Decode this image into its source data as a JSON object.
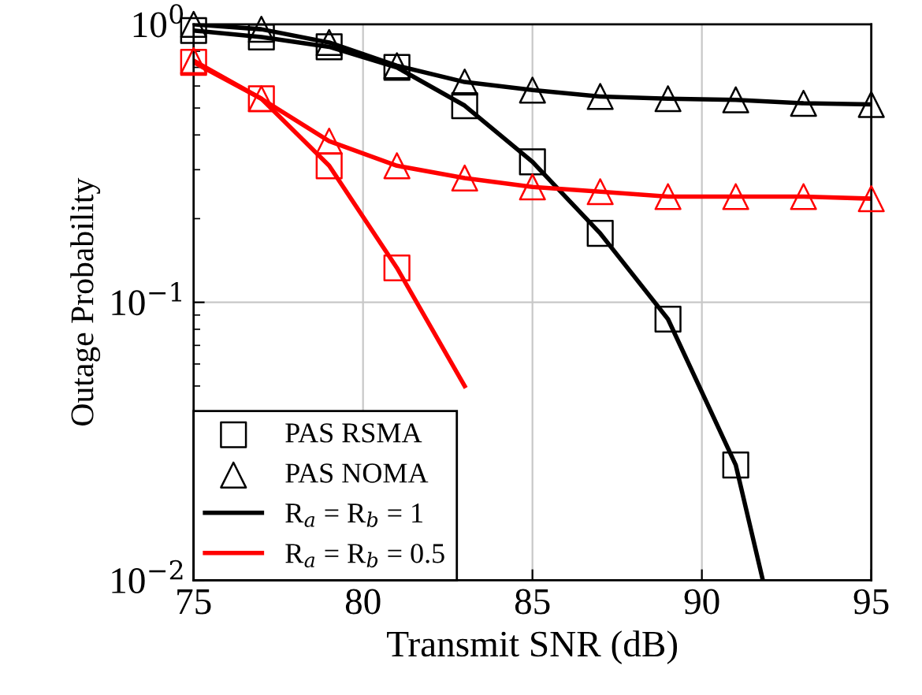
{
  "chart_data": {
    "type": "line",
    "xlabel": "Transmit SNR (dB)",
    "ylabel": "Outage Probability",
    "xlim": [
      75,
      95
    ],
    "xticks": [
      75,
      80,
      85,
      90,
      95
    ],
    "ylim": [
      0.01,
      1
    ],
    "yticks": [
      {
        "value": 0.01,
        "label": "10$^{−2}$"
      },
      {
        "value": 0.1,
        "label": "10$^{−1}$"
      },
      {
        "value": 1,
        "label": "10$^{0}$"
      }
    ],
    "log": "y",
    "grid": true,
    "legend": "bottom left",
    "series": [
      {
        "name": "PAS RSMA",
        "type": "scatter",
        "marker": "square",
        "color": "#000000",
        "x": [
          75,
          77,
          79,
          81,
          83,
          85,
          87,
          89,
          91
        ],
        "values": [
          0.95,
          0.9,
          0.83,
          0.7,
          0.51,
          0.32,
          0.177,
          0.087,
          0.026
        ]
      },
      {
        "type": "scatter",
        "marker": "square",
        "color": "#ff0000",
        "x": [
          75,
          77,
          79,
          81
        ],
        "values": [
          0.73,
          0.54,
          0.31,
          0.133
        ]
      },
      {
        "name": "PAS NOMA",
        "type": "scatter",
        "marker": "triangle",
        "color": "#000000",
        "x": [
          75,
          77,
          79,
          81,
          83,
          85,
          87,
          89,
          91,
          93,
          95
        ],
        "values": [
          1.0,
          0.96,
          0.86,
          0.71,
          0.62,
          0.58,
          0.55,
          0.54,
          0.535,
          0.52,
          0.515
        ]
      },
      {
        "type": "scatter",
        "marker": "triangle",
        "color": "#ff0000",
        "x": [
          75,
          77,
          79,
          81,
          83,
          85,
          87,
          89,
          91,
          93,
          95
        ],
        "values": [
          0.74,
          0.54,
          0.38,
          0.31,
          0.28,
          0.26,
          0.25,
          0.24,
          0.24,
          0.24,
          0.236
        ]
      },
      {
        "name": "R$_{a}$ = R$_{b}$ = 1",
        "color": "#000000",
        "x": [
          75,
          77,
          79,
          81,
          83,
          85,
          87,
          89,
          91,
          91.8
        ],
        "values": [
          0.95,
          0.9,
          0.83,
          0.7,
          0.51,
          0.32,
          0.177,
          0.087,
          0.026,
          0.01
        ]
      },
      {
        "color": "#000000",
        "x": [
          75,
          77,
          79,
          81,
          83,
          85,
          87,
          89,
          91,
          93,
          95
        ],
        "values": [
          1.0,
          0.96,
          0.86,
          0.71,
          0.62,
          0.58,
          0.55,
          0.54,
          0.535,
          0.52,
          0.515
        ]
      },
      {
        "name": "R$_{a}$ = R$_{b}$ = 0.5",
        "color": "#ff0000",
        "x": [
          75,
          77,
          79,
          81,
          83
        ],
        "values": [
          0.73,
          0.54,
          0.31,
          0.133,
          0.05
        ]
      },
      {
        "color": "#ff0000",
        "x": [
          75,
          77,
          79,
          81,
          83,
          85,
          87,
          89,
          91,
          93,
          95
        ],
        "values": [
          0.74,
          0.54,
          0.38,
          0.31,
          0.28,
          0.26,
          0.25,
          0.24,
          0.24,
          0.24,
          0.236
        ]
      }
    ]
  }
}
